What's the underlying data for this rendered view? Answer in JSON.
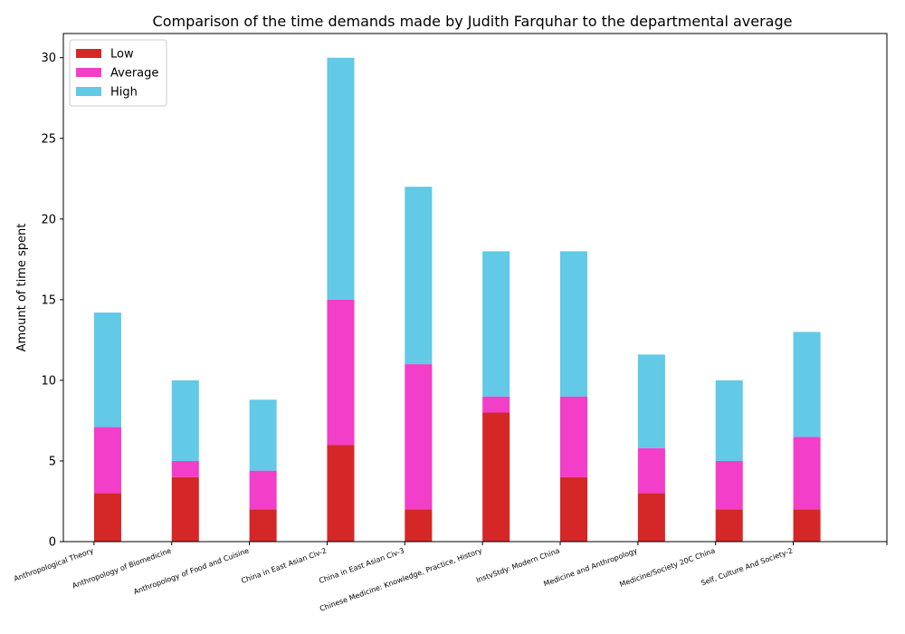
{
  "chart_data": {
    "type": "bar",
    "stacked": true,
    "title": "Comparison of the time demands made by Judith Farquhar to the departmental average",
    "xlabel": "",
    "ylabel": "Amount of time spent",
    "ylim": [
      0,
      31.5
    ],
    "yticks": [
      0,
      5,
      10,
      15,
      20,
      25,
      30
    ],
    "legend_position": "top-left",
    "grid": false,
    "categories": [
      "Anthropological Theory",
      "Anthropology of Biomedicine",
      "Anthropology of Food and Cuisine",
      "China in East Asian Civ-2",
      "China in East Asian Civ-3",
      "Chinese Medicine: Knowledge, Practice, History",
      "InstvStdy: Modern China",
      "Medicine and Anthropology",
      "Medicine/Society 20C China",
      "Self, Culture And Society-2"
    ],
    "series": [
      {
        "name": "Low",
        "color": "#d62728",
        "values": [
          3,
          4,
          2,
          6,
          2,
          8,
          4,
          3,
          2,
          2
        ]
      },
      {
        "name": "Average",
        "color": "#f23ec8",
        "values": [
          4.1,
          1,
          2.4,
          9,
          9,
          1,
          5,
          2.8,
          3,
          4.5
        ]
      },
      {
        "name": "High",
        "color": "#62c9e6",
        "values": [
          7.1,
          5,
          4.4,
          15,
          11,
          9,
          9,
          5.8,
          5,
          6.5
        ]
      }
    ]
  }
}
